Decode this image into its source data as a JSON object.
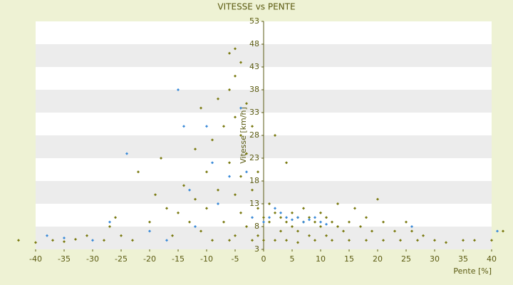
{
  "chart_data": {
    "type": "scatter",
    "title": "VITESSE vs PENTE",
    "x_label": "Pente [%]",
    "y_label": "Vitesse [km/h]",
    "xlim": [
      -40,
      40
    ],
    "xticks": [
      -40,
      -35,
      -30,
      -25,
      -20,
      -15,
      -10,
      -5,
      0,
      5,
      10,
      15,
      20,
      25,
      30,
      35,
      40
    ],
    "ylim": [
      3,
      53
    ],
    "yticks": [
      3,
      8,
      13,
      18,
      23,
      28,
      33,
      38,
      43,
      48,
      53
    ],
    "grid": true,
    "series": [
      {
        "color": "#7a7a10",
        "x": [
          -43,
          -40,
          -37,
          -35,
          -33,
          -31,
          -28,
          -27,
          -26,
          -25,
          -23,
          -22,
          -20,
          -19,
          -18,
          -17,
          -16,
          -15,
          -14,
          -13,
          -12,
          -12,
          -11,
          -11,
          -10,
          -10,
          -9,
          -9,
          -8,
          -8,
          -7,
          -7,
          -6,
          -6,
          -6,
          -6,
          -5,
          -5,
          -5,
          -5,
          -5,
          -4,
          -4,
          -4,
          -4,
          -3,
          -3,
          -3,
          -2,
          -2,
          -2,
          -1,
          -1,
          -1,
          0,
          0,
          1,
          1,
          2,
          2,
          2,
          3,
          3,
          4,
          4,
          4,
          5,
          5,
          6,
          6,
          6,
          7,
          7,
          8,
          8,
          9,
          9,
          10,
          10,
          11,
          11,
          12,
          12,
          13,
          13,
          14,
          15,
          15,
          16,
          17,
          18,
          18,
          19,
          20,
          21,
          21,
          23,
          24,
          25,
          26,
          27,
          28,
          30,
          32,
          35,
          37,
          40,
          42
        ],
        "values": [
          5,
          4.5,
          5,
          4.7,
          5.2,
          6,
          5,
          8,
          10,
          6,
          5,
          20,
          9,
          15,
          23,
          12,
          6,
          11,
          17,
          9,
          25,
          14,
          34,
          7,
          20,
          12,
          27,
          5,
          36,
          16,
          30,
          9,
          46,
          38,
          22,
          5,
          47,
          41,
          32,
          15,
          6,
          44,
          28,
          19,
          11,
          35,
          24,
          8,
          30,
          16,
          5,
          20,
          12,
          6,
          10,
          5,
          13,
          9,
          28,
          11,
          5,
          10,
          7,
          22,
          9,
          5,
          11,
          8,
          10,
          7,
          4.5,
          12,
          9,
          10,
          6,
          9,
          5,
          11,
          8,
          10,
          6,
          9,
          5,
          13,
          8,
          7,
          9,
          5,
          12,
          8,
          10,
          5,
          7,
          14,
          9,
          5,
          7,
          5,
          9,
          7,
          5,
          6,
          5,
          4.5,
          5,
          5,
          5,
          7
        ]
      },
      {
        "color": "#3a8ad8",
        "x": [
          -38,
          -35,
          -30,
          -27,
          -24,
          -20,
          -17,
          -15,
          -14,
          -13,
          -12,
          -10,
          -9,
          -8,
          -6,
          -4,
          -3,
          -2,
          0,
          1,
          2,
          3,
          4,
          5,
          6,
          7,
          8,
          9,
          10,
          11,
          26,
          41
        ],
        "values": [
          6,
          5.5,
          5,
          9,
          24,
          7,
          5,
          38,
          30,
          16,
          8,
          30,
          22,
          13,
          19,
          34,
          20,
          10,
          9,
          10,
          12,
          11,
          10,
          9.5,
          10,
          9,
          9.5,
          10,
          9,
          8.5,
          8,
          7
        ]
      }
    ]
  }
}
